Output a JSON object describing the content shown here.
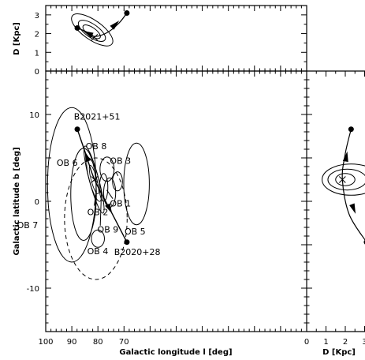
{
  "chart_data": [
    {
      "id": "top",
      "type": "scatter",
      "title": "",
      "xlabel": "",
      "ylabel": "D [Kpc]",
      "xlim": [
        100,
        0
      ],
      "ylim": [
        0,
        3.5
      ],
      "yticks": [
        0,
        1,
        2,
        3
      ],
      "pulsars": [
        {
          "name": "B2021+51",
          "x": 87.9,
          "y": 2.3
        },
        {
          "name": "B2020+28",
          "x": 68.9,
          "y": 3.1
        }
      ],
      "star_marker": {
        "x": 81.3,
        "y": 1.8
      },
      "path": {
        "x": [
          87.9,
          84.5,
          81.3,
          76.5,
          72,
          68.9
        ],
        "y": [
          2.3,
          2.1,
          1.85,
          2.05,
          2.55,
          3.1
        ]
      },
      "contours": [
        {
          "cx": 82.4,
          "cy": 2.1,
          "rx": 1.6,
          "ry": 0.55,
          "angle": -55
        },
        {
          "cx": 82.3,
          "cy": 2.15,
          "rx": 2.5,
          "ry": 0.85,
          "angle": -55
        },
        {
          "cx": 82.2,
          "cy": 2.2,
          "rx": 3.7,
          "ry": 1.3,
          "angle": -55
        }
      ]
    },
    {
      "id": "main",
      "type": "scatter",
      "title": "",
      "xlabel": "Galactic longitude l [deg]",
      "ylabel": "Galactic latitude b [deg]",
      "xlim": [
        100,
        0
      ],
      "ylim": [
        -15,
        15
      ],
      "xticks": [
        100,
        90,
        80,
        70,
        0
      ],
      "yticks": [
        10,
        0,
        -10
      ],
      "pulsars": [
        {
          "name": "B2021+51",
          "l": 87.9,
          "b": 8.3
        },
        {
          "name": "B2020+28",
          "l": 68.9,
          "b": -4.7
        }
      ],
      "star_marker": {
        "l": 81.3,
        "b": 2.5
      },
      "path": {
        "l": [
          87.9,
          84.6,
          81.3,
          75.1,
          68.9
        ],
        "b": [
          8.3,
          5.4,
          2.5,
          -1.1,
          -4.7
        ]
      },
      "regions": [
        {
          "name": "OB 1",
          "l": 75.5,
          "b": 1.0,
          "rl": 2.3,
          "rb": 1.7,
          "style": "solid"
        },
        {
          "name": "OB 2",
          "l": 81.5,
          "b": 2.5,
          "rl": 1.8,
          "rb": 4.0,
          "angle": -15,
          "style": "solid"
        },
        {
          "name": "OB 3",
          "l": 72.5,
          "b": 2.3,
          "rl": 1.9,
          "rb": 1.1,
          "style": "solid"
        },
        {
          "name": "OB 4",
          "l": 80.0,
          "b": -4.3,
          "rl": 2.5,
          "rb": 1.0,
          "style": "solid"
        },
        {
          "name": "OB 5",
          "l": 65.2,
          "b": 2.0,
          "rl": 4.9,
          "rb": 4.7,
          "style": "solid"
        },
        {
          "name": "OB 6",
          "l": 85.5,
          "b": 0.8,
          "rl": 4.9,
          "rb": 5.3,
          "style": "solid"
        },
        {
          "name": "OB 7",
          "l": 90.0,
          "b": 1.9,
          "rl": 9.3,
          "rb": 8.9,
          "style": "solid"
        },
        {
          "name": "OB 8",
          "l": 76.5,
          "b": 3.7,
          "rl": 2.7,
          "rb": 1.4,
          "style": "solid"
        },
        {
          "name": "OB 9",
          "l": 77.8,
          "b": 1.6,
          "rl": 1.6,
          "rb": 1.6,
          "style": "solid"
        },
        {
          "name": "",
          "l": 80.8,
          "b": -2.0,
          "rl": 12.0,
          "rb": 7.0,
          "style": "dashed"
        }
      ],
      "labels": [
        {
          "text": "B2021+51",
          "l": 89.2,
          "b": 9.4
        },
        {
          "text": "B2020+28",
          "l": 73.8,
          "b": -6.2
        },
        {
          "text": "OB 1",
          "l": 75.4,
          "b": -0.6
        },
        {
          "text": "OB 2",
          "l": 84.1,
          "b": -1.6
        },
        {
          "text": "OB 3",
          "l": 75.4,
          "b": 4.3
        },
        {
          "text": "OB 4",
          "l": 84.1,
          "b": -6.1
        },
        {
          "text": "OB 5",
          "l": 69.8,
          "b": -3.8
        },
        {
          "text": "OB 6",
          "l": 95.8,
          "b": 4.1
        },
        {
          "text": "OB 7",
          "l": 111.0,
          "b": -3.1
        },
        {
          "text": "OB 8",
          "l": 84.7,
          "b": 6.0
        },
        {
          "text": "OB 9",
          "l": 80.2,
          "b": -3.6
        }
      ],
      "leaders": [
        {
          "from": {
            "l": 81.4,
            "b": -0.5
          },
          "to": {
            "l": 80.6,
            "b": 1.2
          }
        },
        {
          "from": {
            "l": 79.1,
            "b": -2.8
          },
          "to": {
            "l": 78.7,
            "b": 0.7
          }
        },
        {
          "from": {
            "l": 74.3,
            "b": 0.3
          },
          "to": {
            "l": 76.6,
            "b": 1.3
          }
        }
      ]
    },
    {
      "id": "side",
      "type": "scatter",
      "title": "",
      "xlabel": "D [Kpc]",
      "ylabel": "",
      "xlim": [
        0,
        3
      ],
      "ylim": [
        -15,
        15
      ],
      "xticks": [
        0,
        1,
        2,
        3
      ],
      "pulsars": [
        {
          "name": "B2021+51",
          "x": 2.3,
          "y": 8.3
        },
        {
          "name": "B2020+28",
          "x": 3.1,
          "y": -4.7
        }
      ],
      "star_marker": {
        "x": 1.85,
        "y": 2.5
      },
      "path": {
        "x": [
          2.3,
          2.0,
          1.85,
          2.2,
          3.1
        ],
        "y": [
          8.3,
          5.5,
          2.5,
          -1.5,
          -4.7
        ]
      },
      "contours": [
        {
          "cx": 2.0,
          "cy": 2.5,
          "rx": 0.5,
          "ry": 0.7
        },
        {
          "cx": 2.1,
          "cy": 2.5,
          "rx": 1.0,
          "ry": 1.2
        },
        {
          "cx": 2.3,
          "cy": 2.5,
          "rx": 1.5,
          "ry": 1.8
        }
      ]
    }
  ],
  "colors": {
    "ink": "#000000",
    "background": "#ffffff"
  }
}
